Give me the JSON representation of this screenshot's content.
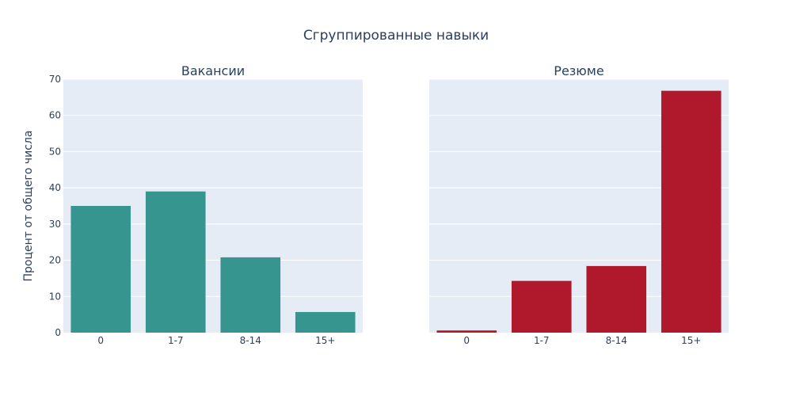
{
  "title": "Сгруппированные навыки",
  "colors": {
    "vacancies": "#36968f",
    "resumes": "#b0182c"
  },
  "chart_data": [
    {
      "type": "bar",
      "title": "Вакансии",
      "categories": [
        "0",
        "1-7",
        "8-14",
        "15+"
      ],
      "values": [
        35.0,
        39.0,
        20.8,
        5.7
      ],
      "xlabel": "",
      "ylabel": "Процент от общего числа",
      "ylim": [
        0,
        70
      ],
      "yticks": [
        0,
        10,
        20,
        30,
        40,
        50,
        60,
        70
      ]
    },
    {
      "type": "bar",
      "title": "Резюме",
      "categories": [
        "0",
        "1-7",
        "8-14",
        "15+"
      ],
      "values": [
        0.6,
        14.3,
        18.4,
        66.8
      ],
      "xlabel": "",
      "ylabel": "Процент от общего числа",
      "ylim": [
        0,
        70
      ]
    }
  ]
}
